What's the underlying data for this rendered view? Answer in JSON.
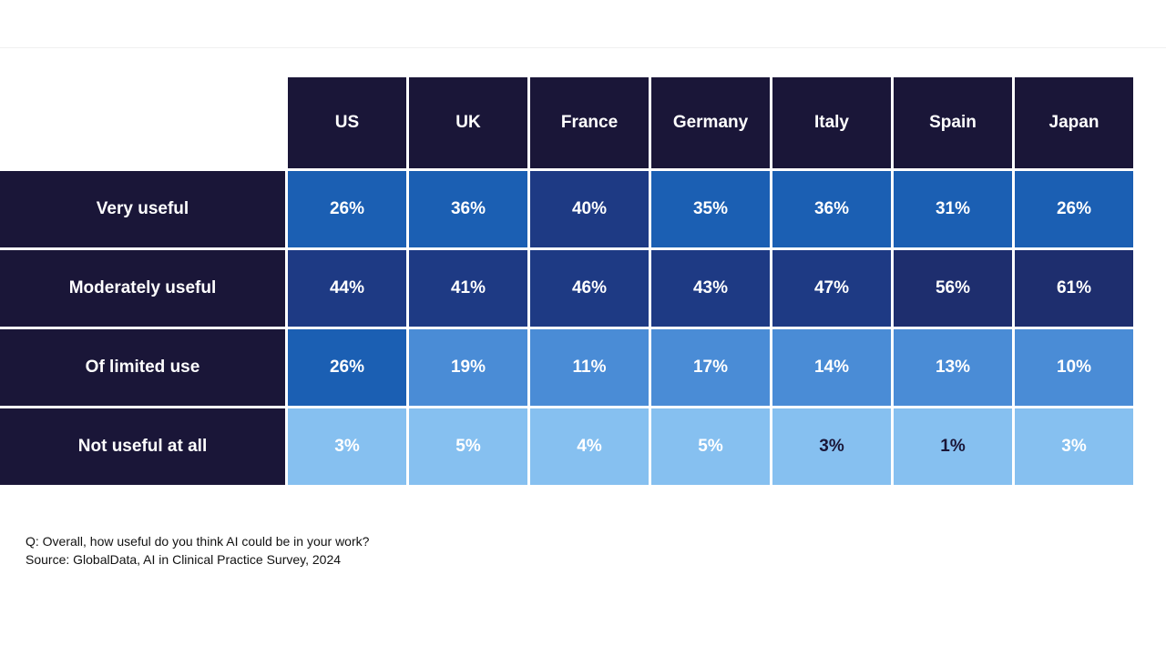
{
  "chart_data": {
    "type": "table",
    "title": "",
    "question": "Q: Overall, how useful do you think AI could be in your work?",
    "source": "Source: GlobalData, AI in Clinical Practice Survey, 2024",
    "columns": [
      "US",
      "UK",
      "France",
      "Germany",
      "Italy",
      "Spain",
      "Japan"
    ],
    "rows": [
      {
        "label": "Very useful",
        "values": [
          "26%",
          "36%",
          "40%",
          "35%",
          "36%",
          "31%",
          "26%"
        ],
        "colors": [
          "#1b5fb3",
          "#1b5fb3",
          "#1e3a84",
          "#1b5fb3",
          "#1b5fb3",
          "#1b5fb3",
          "#1b5fb3"
        ]
      },
      {
        "label": "Moderately useful",
        "values": [
          "44%",
          "41%",
          "46%",
          "43%",
          "47%",
          "56%",
          "61%"
        ],
        "colors": [
          "#1e3a84",
          "#1e3a84",
          "#1e3a84",
          "#1e3a84",
          "#1e3a84",
          "#1e2e6e",
          "#1e2e6e"
        ]
      },
      {
        "label": "Of limited use",
        "values": [
          "26%",
          "19%",
          "11%",
          "17%",
          "14%",
          "13%",
          "10%"
        ],
        "colors": [
          "#1b5fb3",
          "#4a8cd6",
          "#4a8cd6",
          "#4a8cd6",
          "#4a8cd6",
          "#4a8cd6",
          "#4a8cd6"
        ]
      },
      {
        "label": "Not useful at all",
        "values": [
          "3%",
          "5%",
          "4%",
          "5%",
          "3%",
          "1%",
          "3%"
        ],
        "colors": [
          "#86c0f0",
          "#86c0f0",
          "#86c0f0",
          "#86c0f0",
          "#86c0f0",
          "#86c0f0",
          "#86c0f0"
        ],
        "text_colors": [
          "#ffffff",
          "#ffffff",
          "#ffffff",
          "#ffffff",
          "#1a1638",
          "#1a1638",
          "#ffffff"
        ]
      }
    ]
  },
  "palette": {
    "header_bg": "#1a1638",
    "default_text": "#ffffff"
  }
}
